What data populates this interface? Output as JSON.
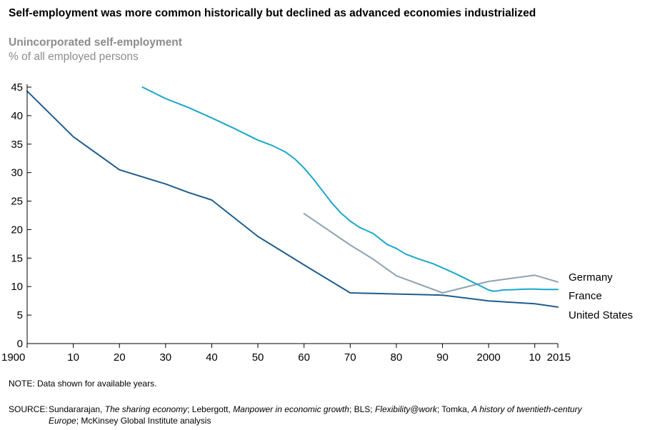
{
  "title": "Self-employment was more common historically but declined as advanced economies industrialized",
  "subtitle": "Unincorporated self-employment",
  "units": "% of all employed persons",
  "note": "NOTE: Data shown for available years.",
  "source": {
    "label": "SOURCE:",
    "parts": [
      {
        "text": "Sundararajan, ",
        "italic": false
      },
      {
        "text": "The sharing economy",
        "italic": true
      },
      {
        "text": "; Lebergott, ",
        "italic": false
      },
      {
        "text": "Manpower in economic growth",
        "italic": true
      },
      {
        "text": "; BLS; ",
        "italic": false
      },
      {
        "text": "Flexibility@work",
        "italic": true
      },
      {
        "text": "; Tomka, ",
        "italic": false
      },
      {
        "text": "A history of twentieth-century",
        "italic": true
      }
    ],
    "parts_line2": [
      {
        "text": "Europe",
        "italic": true
      },
      {
        "text": "; McKinsey Global Institute analysis",
        "italic": false
      }
    ]
  },
  "chart_data": {
    "type": "line",
    "title": "Self-employment was more common historically but declined as advanced economies industrialized",
    "ylabel": "% of all employed persons",
    "xlim": [
      1900,
      2015
    ],
    "ylim": [
      0,
      45
    ],
    "y_ticks": [
      0,
      5,
      10,
      15,
      20,
      25,
      30,
      35,
      40,
      45
    ],
    "x_ticks": [
      {
        "value": 1900,
        "label": "1900"
      },
      {
        "value": 1910,
        "label": "10"
      },
      {
        "value": 1920,
        "label": "20"
      },
      {
        "value": 1930,
        "label": "30"
      },
      {
        "value": 1940,
        "label": "40"
      },
      {
        "value": 1950,
        "label": "50"
      },
      {
        "value": 1960,
        "label": "60"
      },
      {
        "value": 1970,
        "label": "70"
      },
      {
        "value": 1980,
        "label": "80"
      },
      {
        "value": 1990,
        "label": "90"
      },
      {
        "value": 2000,
        "label": "2000"
      },
      {
        "value": 2010,
        "label": "10"
      },
      {
        "value": 2015,
        "label": "2015"
      }
    ],
    "grid": false,
    "legend": "labels at line ends (right)",
    "series": [
      {
        "name": "Germany",
        "color": "#8fa3b1",
        "x": [
          1960,
          1970,
          1975,
          1980,
          1990,
          2000,
          2010,
          2015
        ],
        "y": [
          22.8,
          17.3,
          14.8,
          11.9,
          8.9,
          10.9,
          12.0,
          10.8
        ]
      },
      {
        "name": "France",
        "color": "#1aa7c9",
        "x": [
          1925,
          1930,
          1935,
          1940,
          1945,
          1950,
          1953,
          1956,
          1958,
          1960,
          1962,
          1964,
          1966,
          1968,
          1970,
          1972,
          1975,
          1978,
          1980,
          1982,
          1985,
          1988,
          1990,
          1993,
          1996,
          1998,
          2000,
          2001,
          2002,
          2003,
          2005,
          2008,
          2010,
          2012,
          2015
        ],
        "y": [
          45.0,
          43.0,
          41.4,
          39.6,
          37.7,
          35.7,
          34.8,
          33.6,
          32.4,
          30.8,
          28.9,
          26.8,
          24.7,
          22.9,
          21.5,
          20.4,
          19.3,
          17.4,
          16.7,
          15.7,
          14.8,
          14.0,
          13.3,
          12.2,
          11.0,
          10.2,
          9.4,
          9.2,
          9.25,
          9.4,
          9.45,
          9.55,
          9.55,
          9.5,
          9.5
        ]
      },
      {
        "name": "United States",
        "color": "#1f5d8e",
        "x": [
          1900,
          1910,
          1920,
          1930,
          1935,
          1940,
          1950,
          1960,
          1970,
          1975,
          1980,
          1985,
          1990,
          2000,
          2010,
          2015
        ],
        "y": [
          44.3,
          36.3,
          30.5,
          28.0,
          26.5,
          25.2,
          18.8,
          13.8,
          8.9,
          8.8,
          8.7,
          8.6,
          8.5,
          7.5,
          7.0,
          6.4
        ]
      }
    ]
  }
}
